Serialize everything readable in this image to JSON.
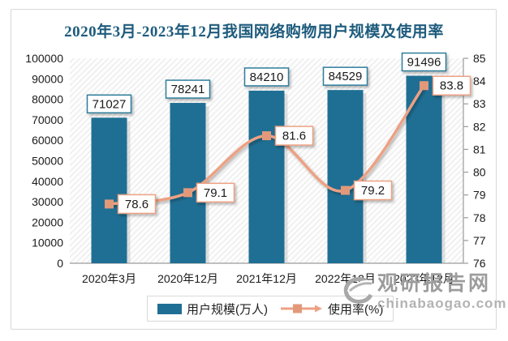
{
  "chart_data": {
    "type": "combo",
    "title": "2020年3月-2023年12月我国网络购物用户规模及使用率",
    "categories": [
      "2020年3月",
      "2020年12月",
      "2021年12月",
      "2022年12月",
      "2023年12月"
    ],
    "series": [
      {
        "name": "用户规模(万人)",
        "type": "bar",
        "axis": "left",
        "values": [
          71027,
          78241,
          84210,
          84529,
          91496
        ]
      },
      {
        "name": "使用率(%)",
        "type": "line",
        "axis": "right",
        "values": [
          78.6,
          79.1,
          81.6,
          79.2,
          83.8
        ]
      }
    ],
    "left_axis": {
      "min": 0,
      "max": 100000,
      "step": 10000,
      "ticks": [
        0,
        10000,
        20000,
        30000,
        40000,
        50000,
        60000,
        70000,
        80000,
        90000,
        100000
      ]
    },
    "right_axis": {
      "min": 76,
      "max": 85,
      "step": 1,
      "ticks": [
        76,
        77,
        78,
        79,
        80,
        81,
        82,
        83,
        84,
        85
      ]
    },
    "grid": false,
    "legend_position": "bottom",
    "plot_background": "diagonal-hatch",
    "colors": {
      "bar": "#1f6f94",
      "line": "#eda183",
      "marker": "#e2997a",
      "bar_label_border": "#2e7d9c",
      "line_label_border": "#eda183",
      "title": "#1e5c7d",
      "axis_line": "#9b9b9b",
      "hatch_line": "#e7e7e7"
    }
  },
  "watermark": {
    "name": "观研报告网",
    "domain": "chinabaogao.com"
  }
}
